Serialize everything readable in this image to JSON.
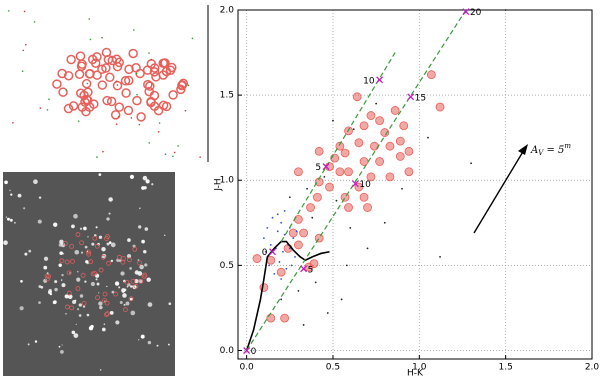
{
  "chart_data": {
    "type": "scatter",
    "xlabel": "H-K",
    "ylabel": "J-H",
    "xlim": [
      -0.05,
      2.0
    ],
    "ylim": [
      -0.05,
      2.0
    ],
    "xticks": [
      {
        "value": 0,
        "label": "0.0"
      },
      {
        "value": 0.5,
        "label": "0.5"
      },
      {
        "value": 1,
        "label": "1.0"
      },
      {
        "value": 1.5,
        "label": "1.5"
      },
      {
        "value": 2,
        "label": "2.0"
      }
    ],
    "yticks": [
      {
        "value": 0,
        "label": "0.0"
      },
      {
        "value": 0.5,
        "label": "0.5"
      },
      {
        "value": 1,
        "label": "1.0"
      },
      {
        "value": 1.5,
        "label": "1.5"
      },
      {
        "value": 2,
        "label": "2.0"
      }
    ],
    "grid": true,
    "series": [
      {
        "color": "#e8605a",
        "marker": "circle",
        "x": [
          1.07,
          1.12,
          0.86,
          0.64,
          0.72,
          0.77,
          0.68,
          0.59,
          0.8,
          0.89,
          0.94,
          0.83,
          0.74,
          0.65,
          0.57,
          0.51,
          0.48,
          0.54,
          0.59,
          0.68,
          0.77,
          0.89,
          0.72,
          0.65,
          0.68,
          0.7,
          0.59,
          0.42,
          0.41,
          0.37,
          0.3,
          0.27,
          0.33,
          0.42,
          0.24,
          0.14,
          0.06,
          0.39,
          0.2,
          0.36,
          0.1,
          0.14,
          0.3,
          0.57,
          0.48,
          0.54,
          0.42,
          0.83,
          0.94,
          0.91,
          0.3,
          0.22
        ],
        "y": [
          1.62,
          1.43,
          1.41,
          1.49,
          1.38,
          1.35,
          1.32,
          1.29,
          1.28,
          1.23,
          1.17,
          1.2,
          1.2,
          1.22,
          1.16,
          1.13,
          1.08,
          1.05,
          1.05,
          1.11,
          1.11,
          1.14,
          1.02,
          0.96,
          0.9,
          0.84,
          0.84,
          0.99,
          0.9,
          0.84,
          0.77,
          0.69,
          0.69,
          0.66,
          0.6,
          0.53,
          0.54,
          0.51,
          0.46,
          0.49,
          0.37,
          0.19,
          0.62,
          0.9,
          0.96,
          1.2,
          1.17,
          1.02,
          1.05,
          1.32,
          1.05,
          0.19
        ]
      },
      {
        "color": "#3050d0",
        "marker": "dot",
        "x": [
          0.12,
          0.15,
          0.18,
          0.2,
          0.22,
          0.25,
          0.27,
          0.14,
          0.17,
          0.21,
          0.24,
          0.28,
          0.1,
          0.13,
          0.19,
          0.23,
          0.26,
          0.16,
          0.2,
          0.29,
          0.11,
          0.18,
          0.22,
          0.25
        ],
        "y": [
          0.72,
          0.78,
          0.7,
          0.75,
          0.68,
          0.72,
          0.66,
          0.62,
          0.6,
          0.58,
          0.62,
          0.55,
          0.66,
          0.5,
          0.52,
          0.48,
          0.5,
          0.45,
          0.42,
          0.7,
          0.58,
          0.8,
          0.82,
          0.6
        ]
      },
      {
        "color": "#222222",
        "marker": "dot",
        "x": [
          0.35,
          0.45,
          0.52,
          0.6,
          0.4,
          0.3,
          0.55,
          0.7,
          1.5,
          1.05,
          0.8,
          0.25,
          0.38,
          0.62,
          0.9,
          1.3,
          0.47,
          0.33,
          0.58,
          0.75,
          0.2,
          1.12,
          0.5
        ],
        "y": [
          0.95,
          1.02,
          0.88,
          0.72,
          0.4,
          0.35,
          0.3,
          0.6,
          2.0,
          1.25,
          0.75,
          0.9,
          0.78,
          1.3,
          0.95,
          1.1,
          0.22,
          0.15,
          0.5,
          1.45,
          0.3,
          0.55,
          1.35
        ]
      }
    ],
    "lines": [
      {
        "color": "#000000",
        "style": "solid",
        "x": [
          0,
          0.04,
          0.08,
          0.1,
          0.12,
          0.16,
          0.2,
          0.23,
          0.27,
          0.31,
          0.34,
          0.38,
          0.43,
          0.48
        ],
        "y": [
          0,
          0.12,
          0.3,
          0.42,
          0.55,
          0.6,
          0.64,
          0.64,
          0.59,
          0.55,
          0.53,
          0.55,
          0.57,
          0.58
        ]
      },
      {
        "color": "#3a9a3a",
        "style": "dashed",
        "x": [
          0,
          1.27
        ],
        "y": [
          0,
          2.0
        ]
      },
      {
        "color": "#3a9a3a",
        "style": "dashed",
        "x": [
          0.2,
          0.86
        ],
        "y": [
          0.64,
          1.75
        ]
      }
    ],
    "reddening_markers": {
      "color": "#c020c0",
      "x": [
        0,
        0.33,
        0.63,
        0.95,
        1.27,
        0.15,
        0.46,
        0.77
      ],
      "y": [
        0,
        0.48,
        0.98,
        1.49,
        1.99,
        0.58,
        1.08,
        1.59
      ],
      "labels": [
        0,
        5,
        10,
        15,
        20,
        0,
        5,
        10
      ]
    },
    "annotation": {
      "main": "A",
      "sub": "V",
      "mid": " = 5",
      "sup": "m"
    }
  }
}
